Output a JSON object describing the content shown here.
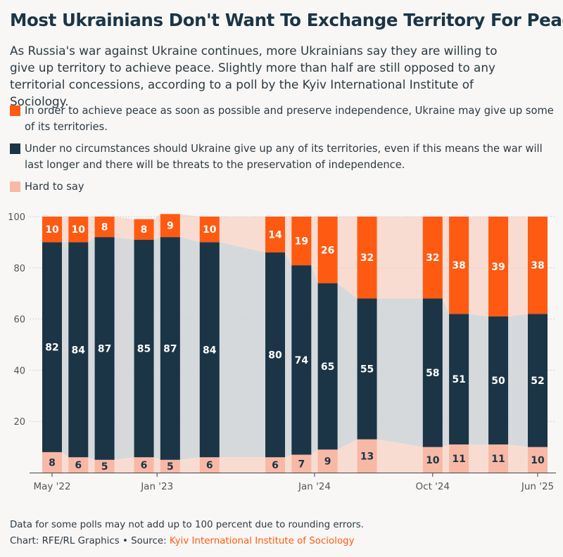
{
  "header": {
    "title": "Most Ukrainians Don't Want To Exchange Territory For Peace",
    "subtitle": "As Russia's war against Ukraine continues, more Ukrainians say they are willing to give up territory to achieve peace. Slightly more than half are still opposed to any territorial concessions, according to a poll by the Kyiv International Institute of Sociology."
  },
  "legend": {
    "items": [
      {
        "label": "In order to achieve peace as soon as possible and preserve independence, Ukraine may give up some of its territories.",
        "color": "#ff5a12"
      },
      {
        "label": "Under no circumstances should Ukraine give up any of its territories, even if this means the war will last longer and there will be threats to the preservation of independence.",
        "color": "#1b3546"
      },
      {
        "label": "Hard to say",
        "color": "#f8b8a6"
      }
    ]
  },
  "chart_data": {
    "type": "bar",
    "stacked": true,
    "x": [
      "2022-05",
      "2022-07",
      "2022-09",
      "2022-12",
      "2023-02",
      "2023-05",
      "2023-10",
      "2023-12",
      "2024-02",
      "2024-05",
      "2024-10",
      "2024-12",
      "2025-03",
      "2025-06"
    ],
    "x_tick_labels": [
      "May '22",
      "Jan '23",
      "Jan '24",
      "Oct '24",
      "Jun '25"
    ],
    "x_tick_positions": [
      "2022-05",
      "2023-01",
      "2024-01",
      "2024-10",
      "2025-06"
    ],
    "ylim": [
      0,
      100
    ],
    "y_ticks": [
      20,
      40,
      60,
      80,
      100
    ],
    "grid": true,
    "series": [
      {
        "name": "Hard to say",
        "values": [
          8,
          6,
          5,
          6,
          5,
          6,
          6,
          7,
          9,
          13,
          10,
          11,
          11,
          10
        ],
        "color": "#f8b8a6"
      },
      {
        "name": "Under no circumstances should Ukraine give up any of its territories",
        "values": [
          82,
          84,
          87,
          85,
          87,
          84,
          80,
          74,
          65,
          55,
          58,
          51,
          50,
          52
        ],
        "color": "#1b3546"
      },
      {
        "name": "Ukraine may give up some of its territories",
        "values": [
          10,
          10,
          8,
          8,
          9,
          10,
          14,
          19,
          26,
          32,
          32,
          38,
          39,
          38
        ],
        "color": "#ff5a12"
      }
    ],
    "colors": {
      "total_band": "#f9dcd1",
      "no_band": "#d6d9dc",
      "hard_band": "#f9dcd1",
      "grid": "#d2d2d2",
      "axis": "#444444"
    }
  },
  "footer": {
    "note": "Data for some polls may not add up to 100 percent due to rounding errors.",
    "credit": "Chart: RFE/RL Graphics • Source: ",
    "source_link": "Kyiv International Institute of Sociology"
  }
}
